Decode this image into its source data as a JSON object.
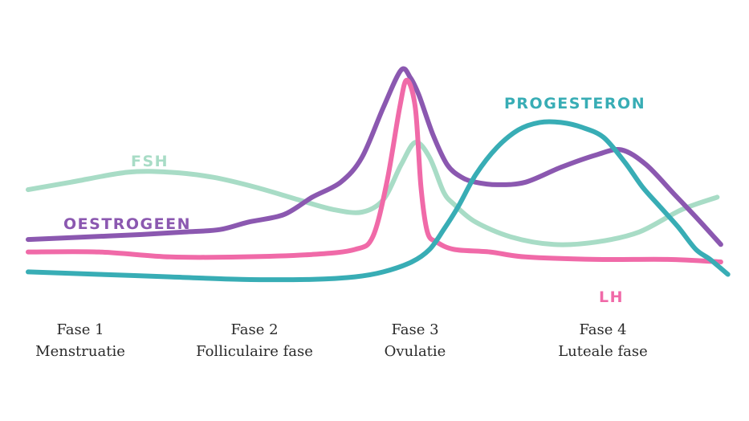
{
  "chart_data": {
    "type": "line",
    "title": "",
    "xlabel": "",
    "ylabel": "",
    "xlim": [
      0,
      100
    ],
    "ylim": [
      0,
      100
    ],
    "grid": false,
    "legend": "inline labels",
    "series": [
      {
        "name": "FSH",
        "color": "#a8dcc6",
        "x": [
          0,
          6,
          14,
          20,
          26,
          32,
          38,
          43,
          47,
          50,
          52.5,
          54.5,
          56.5,
          58.5,
          60,
          63,
          68,
          74,
          80,
          86,
          92,
          97
        ],
        "y": [
          49,
          52,
          56,
          56,
          54,
          50,
          45,
          41,
          40,
          45,
          59,
          68,
          62,
          48,
          43,
          36,
          30,
          27,
          28,
          32,
          41,
          46
        ]
      },
      {
        "name": "OESTROGEEN",
        "color": "#8b58b0",
        "x": [
          0,
          8,
          16,
          22,
          27,
          31,
          36,
          40,
          44,
          47,
          50,
          52.5,
          53.8,
          55,
          57,
          59,
          61,
          63,
          66,
          70,
          75,
          80,
          83.5,
          87,
          91,
          94,
          97.5
        ],
        "y": [
          29,
          30,
          31,
          32,
          33,
          36,
          39,
          46,
          52,
          62,
          82,
          97,
          94,
          87,
          71,
          59,
          54,
          52,
          51,
          52,
          58,
          63,
          65,
          59,
          47,
          38,
          27
        ]
      },
      {
        "name": "LH",
        "color": "#f06aa8",
        "x": [
          0,
          10,
          20,
          30,
          40,
          46,
          48.5,
          50.5,
          52.3,
          53.3,
          54.5,
          55.3,
          56.2,
          57.5,
          60,
          65,
          70,
          80,
          90,
          97.5
        ],
        "y": [
          24,
          24,
          22,
          22,
          23,
          25,
          30,
          52,
          82,
          93,
          82,
          50,
          32,
          28,
          25,
          24,
          22,
          21,
          21,
          20
        ]
      },
      {
        "name": "PROGESTERON",
        "color": "#38adb5",
        "x": [
          0,
          10,
          20,
          30,
          40,
          46,
          50,
          54,
          56.5,
          58.5,
          60.5,
          63,
          66,
          69,
          72,
          75,
          78,
          81,
          84,
          86.5,
          89,
          91.5,
          94,
          96,
          98.5
        ],
        "y": [
          16,
          15,
          14,
          13,
          13,
          14,
          16,
          20,
          25,
          33,
          42,
          55,
          66,
          73,
          76,
          76,
          74,
          70,
          60,
          50,
          42,
          34,
          25,
          21,
          15
        ]
      }
    ],
    "phases": [
      {
        "x": 6,
        "name": "Fase 1",
        "label": "Menstruatie"
      },
      {
        "x": 30,
        "name": "Fase 2",
        "label": "Folliculaire fase"
      },
      {
        "x": 53,
        "name": "Fase 3",
        "label": "Ovulatie"
      },
      {
        "x": 78,
        "name": "Fase 4",
        "label": "Luteale fase"
      }
    ]
  }
}
